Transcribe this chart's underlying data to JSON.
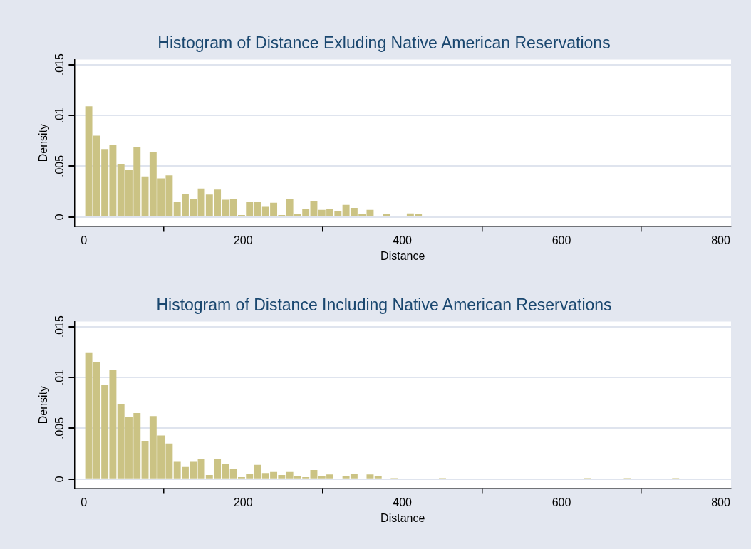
{
  "chart_data": [
    {
      "type": "histogram",
      "title": "Histogram of Distance Exluding Native American Reservations",
      "xlabel": "Distance",
      "ylabel": "Density",
      "color": "#cbc384",
      "bins": [
        1,
        11.1,
        21.2,
        31.3,
        41.4,
        51.5,
        61.6,
        71.7,
        81.8,
        91.9,
        102,
        112.1,
        122.2,
        132.3,
        142.4,
        152.5,
        162.6,
        172.7,
        182.8,
        192.9,
        203,
        213.1,
        223.2,
        233.3,
        243.4,
        253.5,
        263.6,
        273.7,
        283.8,
        293.9,
        304,
        314.1,
        324.2,
        334.3,
        344.4,
        354.5,
        364.6,
        374.7,
        384.8,
        394.9,
        405,
        415.1,
        425.2,
        435.3,
        445.4,
        455.5,
        465.6,
        475.7,
        485.8,
        495.9,
        506,
        516.1,
        526.2,
        536.3,
        546.4,
        556.5,
        566.6,
        576.7,
        586.8,
        596.9,
        607,
        617.1,
        627.2,
        637.3,
        647.4,
        657.5,
        667.6,
        677.7,
        687.8,
        697.9,
        708,
        718.1,
        728.2,
        738.3,
        748.4
      ],
      "values": [
        0.0109,
        0.008,
        0.0067,
        0.0071,
        0.0052,
        0.0046,
        0.0069,
        0.004,
        0.0064,
        0.0038,
        0.0041,
        0.0015,
        0.0023,
        0.0018,
        0.0028,
        0.0022,
        0.0027,
        0.0017,
        0.0018,
        0.0002,
        0.0015,
        0.0015,
        0.001,
        0.0014,
        0.0002,
        0.0018,
        0.0003,
        0.0008,
        0.0016,
        0.0007,
        0.0008,
        0.00055,
        0.0012,
        0.0009,
        0.0003,
        0.0007,
        0,
        0.0003,
        0.0001,
        0,
        0.00035,
        0.0003,
        0.0001,
        0,
        0.0001,
        0,
        0,
        0,
        0,
        0,
        0,
        0,
        0,
        0,
        0,
        0,
        0,
        0,
        0,
        0,
        0,
        0,
        0.0001,
        0,
        0,
        0,
        0,
        0.0001,
        0,
        0,
        0,
        0,
        0,
        0.0001
      ],
      "xlim": [
        -12,
        813
      ],
      "xticks": [
        0,
        200,
        400,
        600,
        800
      ],
      "ylim": [
        -0.0009,
        0.0155
      ],
      "yticks": [
        0,
        {
          "value": 0.005,
          "label": ".005"
        },
        {
          "value": 0.01,
          "label": ".01"
        },
        {
          "value": 0.015,
          "label": ".015"
        }
      ],
      "grid": "y"
    },
    {
      "type": "histogram",
      "title": "Histogram of Distance Including Native American Reservations",
      "xlabel": "Distance",
      "ylabel": "Density",
      "color": "#cbc384",
      "bins": [
        1,
        11.1,
        21.2,
        31.3,
        41.4,
        51.5,
        61.6,
        71.7,
        81.8,
        91.9,
        102,
        112.1,
        122.2,
        132.3,
        142.4,
        152.5,
        162.6,
        172.7,
        182.8,
        192.9,
        203,
        213.1,
        223.2,
        233.3,
        243.4,
        253.5,
        263.6,
        273.7,
        283.8,
        293.9,
        304,
        314.1,
        324.2,
        334.3,
        344.4,
        354.5,
        364.6,
        374.7,
        384.8,
        394.9,
        405,
        415.1,
        425.2,
        435.3,
        445.4,
        455.5,
        465.6,
        475.7,
        485.8,
        495.9,
        506,
        516.1,
        526.2,
        536.3,
        546.4,
        556.5,
        566.6,
        576.7,
        586.8,
        596.9,
        607,
        617.1,
        627.2,
        637.3,
        647.4,
        657.5,
        667.6,
        677.7,
        687.8,
        697.9,
        708,
        718.1,
        728.2,
        738.3,
        748.4
      ],
      "values": [
        0.0124,
        0.0115,
        0.0093,
        0.0107,
        0.0074,
        0.0061,
        0.0065,
        0.0037,
        0.0062,
        0.0043,
        0.0035,
        0.0017,
        0.0012,
        0.0017,
        0.002,
        0.0004,
        0.002,
        0.0015,
        0.001,
        0.0002,
        0.0005,
        0.0014,
        0.0006,
        0.0007,
        0.0004,
        0.0007,
        0.0003,
        0.0002,
        0.0009,
        0.0003,
        0.00045,
        0,
        0.0003,
        0.0005,
        0,
        0.00045,
        0.0003,
        0,
        0.0001,
        0,
        0,
        0,
        0,
        0,
        0.0001,
        0,
        0,
        0,
        0,
        0,
        0,
        0,
        0,
        0,
        0,
        0,
        0,
        0,
        0,
        0,
        0,
        0,
        0.0001,
        0,
        0,
        0,
        0,
        0.0001,
        0,
        0,
        0,
        0,
        0,
        0.0001
      ],
      "xlim": [
        -12,
        813
      ],
      "xticks": [
        0,
        200,
        400,
        600,
        800
      ],
      "ylim": [
        -0.0009,
        0.0155
      ],
      "yticks": [
        0,
        {
          "value": 0.005,
          "label": ".005"
        },
        {
          "value": 0.01,
          "label": ".01"
        },
        {
          "value": 0.015,
          "label": ".015"
        }
      ],
      "grid": "y"
    }
  ]
}
